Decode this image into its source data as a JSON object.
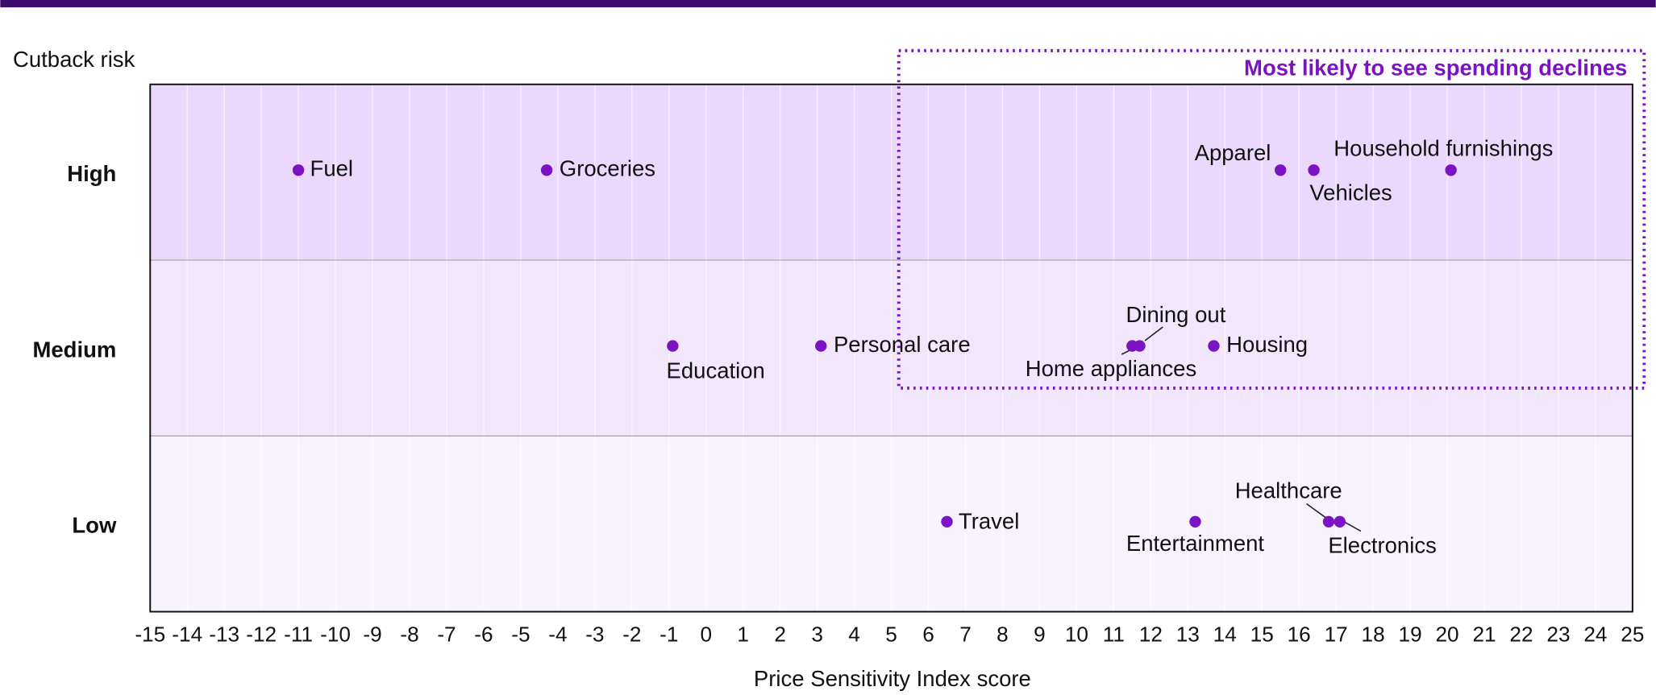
{
  "chart_data": {
    "type": "scatter",
    "title": "Cutback risk",
    "annotation": "Most likely to see spending declines",
    "x_label": "Price Sensitivity Index score",
    "categories": [
      "High",
      "Medium",
      "Low"
    ],
    "color": "#7b12c4",
    "band_colors": [
      "#ead9fc",
      "#f1e6fc",
      "#f8f2fd"
    ],
    "xlim": [
      -15,
      25
    ],
    "xticks": [
      -15,
      -14,
      -13,
      -12,
      -11,
      -10,
      -9,
      -8,
      -7,
      -6,
      -5,
      -4,
      -3,
      -2,
      -1,
      0,
      1,
      2,
      3,
      4,
      5,
      6,
      7,
      8,
      9,
      10,
      11,
      12,
      13,
      14,
      15,
      16,
      17,
      18,
      19,
      20,
      21,
      22,
      23,
      24,
      25
    ],
    "grid": true,
    "points": [
      {
        "label": "Fuel",
        "x": -11.0,
        "y": "High"
      },
      {
        "label": "Groceries",
        "x": -4.3,
        "y": "High"
      },
      {
        "label": "Apparel",
        "x": 15.5,
        "y": "High"
      },
      {
        "label": "Vehicles",
        "x": 16.4,
        "y": "High"
      },
      {
        "label": "Household furnishings",
        "x": 20.1,
        "y": "High"
      },
      {
        "label": "Education",
        "x": -0.9,
        "y": "Medium"
      },
      {
        "label": "Personal care",
        "x": 3.1,
        "y": "Medium"
      },
      {
        "label": "Dining out",
        "x": 11.7,
        "y": "Medium"
      },
      {
        "label": "Home appliances",
        "x": 11.5,
        "y": "Medium"
      },
      {
        "label": "Housing",
        "x": 13.7,
        "y": "Medium"
      },
      {
        "label": "Travel",
        "x": 6.5,
        "y": "Low"
      },
      {
        "label": "Entertainment",
        "x": 13.2,
        "y": "Low"
      },
      {
        "label": "Healthcare",
        "x": 16.8,
        "y": "Low"
      },
      {
        "label": "Electronics",
        "x": 17.1,
        "y": "Low"
      }
    ]
  }
}
